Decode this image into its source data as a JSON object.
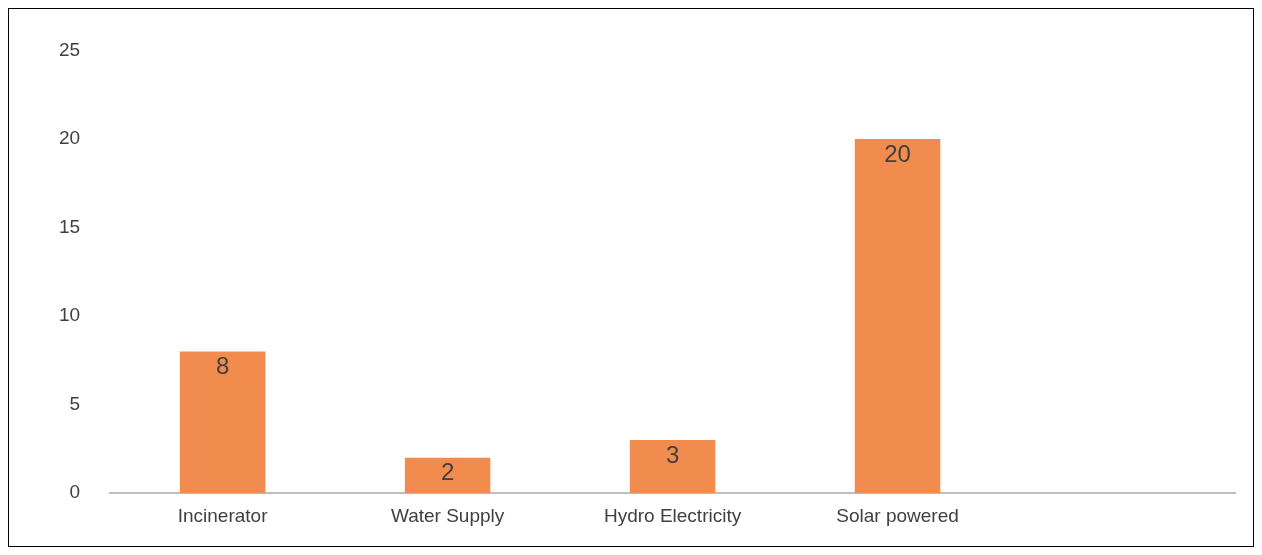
{
  "chart_data": {
    "type": "bar",
    "categories": [
      "Incinerator",
      "Water Supply",
      "Hydro Electricity",
      "Solar powered",
      null
    ],
    "values": [
      8,
      2,
      3,
      20,
      null
    ],
    "color": "#f28c4e",
    "ylim": [
      0,
      25
    ],
    "yticks": [
      0,
      5,
      10,
      15,
      20,
      25
    ],
    "grid": false,
    "legend": false,
    "data_labels": true
  }
}
